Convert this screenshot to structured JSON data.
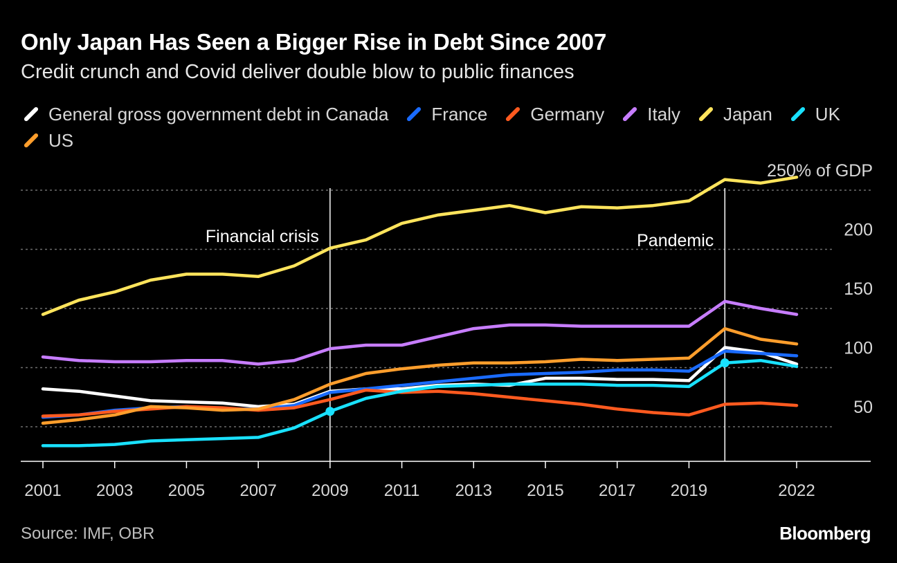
{
  "chart_data": {
    "type": "line",
    "title": "Only Japan Has Seen a Bigger Rise in Debt Since 2007",
    "subtitle": "Credit crunch and Covid deliver double blow to public finances",
    "xlabel": "",
    "ylabel": "% of GDP",
    "ylim": [
      20,
      270
    ],
    "xlim": [
      2000.6,
      2022.6
    ],
    "y_ticks": [
      {
        "value": 250,
        "label": "250% of GDP"
      },
      {
        "value": 200,
        "label": "200"
      },
      {
        "value": 150,
        "label": "150"
      },
      {
        "value": 100,
        "label": "100"
      },
      {
        "value": 50,
        "label": "50"
      }
    ],
    "x_ticks": [
      {
        "value": 2001,
        "label": "2001"
      },
      {
        "value": 2003,
        "label": "2003"
      },
      {
        "value": 2005,
        "label": "2005"
      },
      {
        "value": 2007,
        "label": "2007"
      },
      {
        "value": 2009,
        "label": "2009"
      },
      {
        "value": 2011,
        "label": "2011"
      },
      {
        "value": 2013,
        "label": "2013"
      },
      {
        "value": 2015,
        "label": "2015"
      },
      {
        "value": 2017,
        "label": "2017"
      },
      {
        "value": 2019,
        "label": "2019"
      },
      {
        "value": 2022,
        "label": "2022"
      }
    ],
    "x": [
      2001,
      2002,
      2003,
      2004,
      2005,
      2006,
      2007,
      2008,
      2009,
      2010,
      2011,
      2012,
      2013,
      2014,
      2015,
      2016,
      2017,
      2018,
      2019,
      2020,
      2021,
      2022
    ],
    "series": [
      {
        "name": "General gross government debt in Canada",
        "color": "#ffffff",
        "values": [
          82,
          80,
          76,
          72,
          71,
          70,
          67,
          69,
          80,
          82,
          82,
          85,
          86,
          85,
          91,
          91,
          90,
          90,
          89,
          117,
          113,
          103
        ]
      },
      {
        "name": "France",
        "color": "#1a6bff",
        "values": [
          58,
          60,
          64,
          66,
          67,
          65,
          65,
          68,
          79,
          82,
          85,
          88,
          91,
          94,
          95,
          96,
          98,
          98,
          97,
          114,
          112,
          110
        ]
      },
      {
        "name": "Germany",
        "color": "#ff5a1f",
        "values": [
          59,
          60,
          63,
          65,
          67,
          66,
          64,
          66,
          73,
          81,
          79,
          80,
          78,
          75,
          72,
          69,
          65,
          62,
          60,
          69,
          70,
          68
        ]
      },
      {
        "name": "Italy",
        "color": "#c77dff",
        "values": [
          109,
          106,
          105,
          105,
          106,
          106,
          103,
          106,
          116,
          119,
          119,
          126,
          133,
          136,
          136,
          135,
          135,
          135,
          135,
          156,
          150,
          145
        ]
      },
      {
        "name": "Japan",
        "color": "#ffe45c",
        "values": [
          145,
          157,
          164,
          174,
          179,
          179,
          177,
          186,
          201,
          208,
          222,
          229,
          233,
          237,
          231,
          236,
          235,
          237,
          241,
          259,
          256,
          261
        ]
      },
      {
        "name": "UK",
        "color": "#19e1ff",
        "values": [
          34,
          34,
          35,
          38,
          39,
          40,
          41,
          49,
          63,
          74,
          80,
          84,
          85,
          86,
          86,
          86,
          85,
          85,
          84,
          104,
          106,
          101
        ]
      },
      {
        "name": "US",
        "color": "#ff9e2c",
        "values": [
          53,
          56,
          60,
          67,
          66,
          64,
          65,
          73,
          86,
          95,
          99,
          102,
          104,
          104,
          105,
          107,
          106,
          107,
          108,
          133,
          124,
          120
        ]
      }
    ],
    "annotations": [
      {
        "x": 2009,
        "label": "Financial crisis"
      },
      {
        "x": 2020,
        "label": "Pandemic"
      }
    ],
    "highlight_points": [
      {
        "series": "UK",
        "x": 2009,
        "y": 63
      },
      {
        "series": "UK",
        "x": 2020,
        "y": 104
      }
    ],
    "grid": true,
    "legend": "top"
  },
  "source": "Source: IMF, OBR",
  "brand": "Bloomberg",
  "colors": {
    "background": "#000000",
    "grid": "#6e6e6e",
    "axis": "#ffffff"
  }
}
